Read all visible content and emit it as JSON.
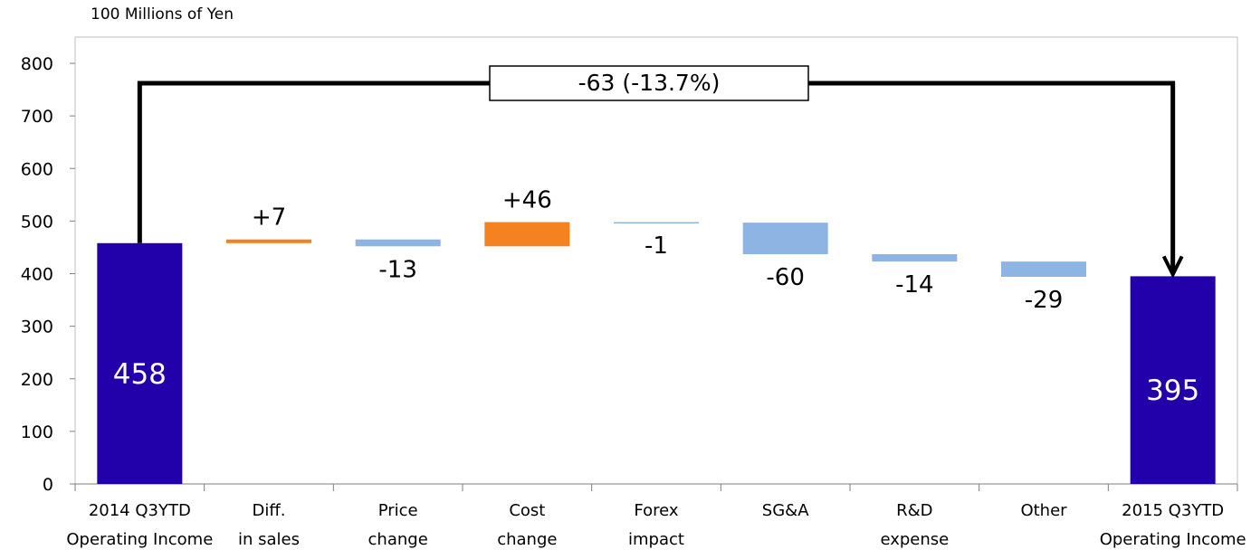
{
  "chart_data": {
    "type": "bar",
    "subtype": "waterfall",
    "unit_label": "100 Millions of Yen",
    "ylim": [
      0,
      800
    ],
    "y_ticks": [
      "0",
      "100",
      "200",
      "300",
      "400",
      "500",
      "600",
      "700",
      "800"
    ],
    "grid": false,
    "categories": [
      [
        "2014 Q3YTD",
        "Operating Income"
      ],
      [
        "Diff.",
        "in sales"
      ],
      [
        "Price",
        "change"
      ],
      [
        "Cost",
        "change"
      ],
      [
        "Forex",
        "impact"
      ],
      [
        "SG&A"
      ],
      [
        "R&D",
        "expense"
      ],
      [
        "Other"
      ],
      [
        "2015 Q3YTD",
        "Operating Income"
      ]
    ],
    "bars": [
      {
        "kind": "total",
        "start": 0,
        "end": 458,
        "label": "458"
      },
      {
        "kind": "increase",
        "start": 458,
        "end": 465,
        "label": "+7"
      },
      {
        "kind": "decrease",
        "start": 465,
        "end": 452,
        "label": "-13"
      },
      {
        "kind": "increase",
        "start": 452,
        "end": 498,
        "label": "+46"
      },
      {
        "kind": "decrease",
        "start": 498,
        "end": 497,
        "label": "-1"
      },
      {
        "kind": "decrease",
        "start": 497,
        "end": 437,
        "label": "-60"
      },
      {
        "kind": "decrease",
        "start": 437,
        "end": 423,
        "label": "-14"
      },
      {
        "kind": "decrease",
        "start": 423,
        "end": 394,
        "label": "-29"
      },
      {
        "kind": "total",
        "start": 0,
        "end": 395,
        "label": "395"
      }
    ],
    "annotation": {
      "text": "-63 (-13.7%)",
      "from_index": 0,
      "to_index": 8
    },
    "colors": {
      "total": "#2200AA",
      "increase": "#F58220",
      "decrease": "#8DB4E2",
      "total_label": "#FFFFFF",
      "text": "#000000"
    }
  }
}
